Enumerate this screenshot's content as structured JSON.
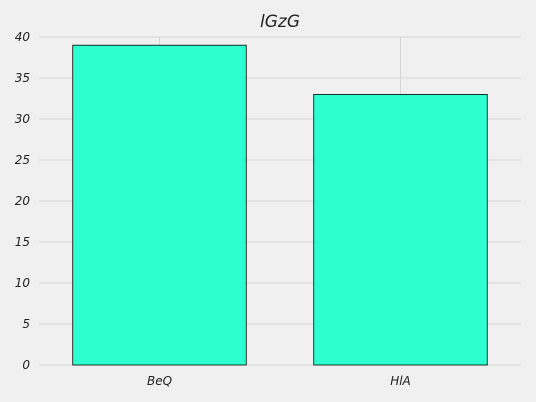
{
  "chart_data": {
    "type": "bar",
    "title": "lGzG",
    "xlabel": "",
    "ylabel": "",
    "categories": [
      "BeQ",
      "HlA"
    ],
    "values": [
      39,
      33
    ],
    "ylim": [
      0,
      40
    ],
    "yticks": [
      0,
      5,
      10,
      15,
      20,
      25,
      30,
      35,
      40
    ],
    "grid": true,
    "bar_color": "#2dffd0",
    "background_color": "#f0f0f0",
    "grid_color": "#d6d6d6"
  }
}
